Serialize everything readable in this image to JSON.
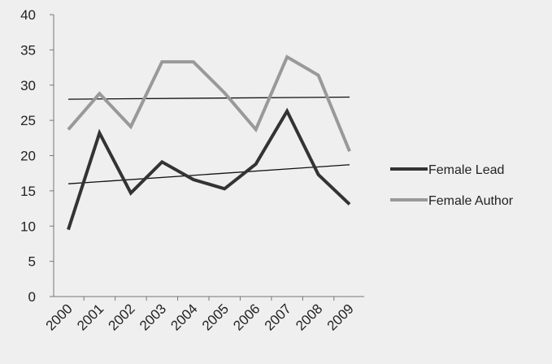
{
  "chart_data": {
    "type": "line",
    "title": "",
    "xlabel": "",
    "ylabel": "",
    "categories": [
      "2000",
      "2001",
      "2002",
      "2003",
      "2004",
      "2005",
      "2006",
      "2007",
      "2008",
      "2009"
    ],
    "ylim": [
      0,
      40
    ],
    "yticks": [
      "0",
      "5",
      "10",
      "15",
      "20",
      "25",
      "30",
      "35",
      "40"
    ],
    "grid": false,
    "legend_position": "right",
    "series": [
      {
        "name": "Female Lead",
        "color": "#333333",
        "values": [
          9.5,
          23.2,
          14.7,
          19.1,
          16.6,
          15.3,
          18.8,
          26.3,
          17.3,
          13.1
        ]
      },
      {
        "name": "Female Author",
        "color": "#999999",
        "values": [
          23.7,
          28.8,
          24.1,
          33.3,
          33.3,
          28.9,
          23.7,
          34.0,
          31.4,
          20.6
        ]
      }
    ],
    "trendlines": [
      {
        "series": "Female Lead",
        "color": "#111111",
        "start": 16.0,
        "end": 18.7
      },
      {
        "series": "Female Author",
        "color": "#111111",
        "start": 28.0,
        "end": 28.3
      }
    ]
  }
}
